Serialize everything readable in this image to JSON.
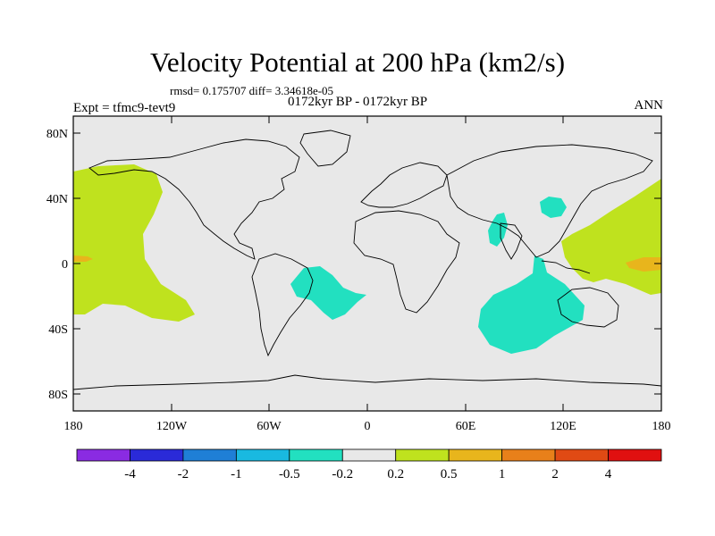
{
  "title": "Velocity Potential at 200 hPa (km2/s)",
  "stats": "rmsd= 0.175707 diff= 3.34618e-05",
  "period": "0172kyr BP - 0172kyr BP",
  "expt": "Expt = tfmc9-tevt9",
  "season": "ANN",
  "lat_labels": [
    "80N",
    "40N",
    "0",
    "40S",
    "80S"
  ],
  "lon_labels": [
    "180",
    "120W",
    "60W",
    "0",
    "60E",
    "120E",
    "180"
  ],
  "colorbar": {
    "colors": [
      "#8a2be2",
      "#2a2ad8",
      "#1f7fd6",
      "#19b9e0",
      "#22e0c0",
      "#e8e8e8",
      "#bfe21e",
      "#e8b51c",
      "#e8801a",
      "#e04a14",
      "#e01010"
    ],
    "labels": [
      "-4",
      "-2",
      "-1",
      "-0.5",
      "-0.2",
      "0.2",
      "0.5",
      "1",
      "2",
      "4"
    ]
  },
  "colors": {
    "land_ocean": "#e8e8e8",
    "positive_low": "#bfe21e",
    "positive_mid": "#e8b51c",
    "negative_low": "#22e0c0"
  }
}
